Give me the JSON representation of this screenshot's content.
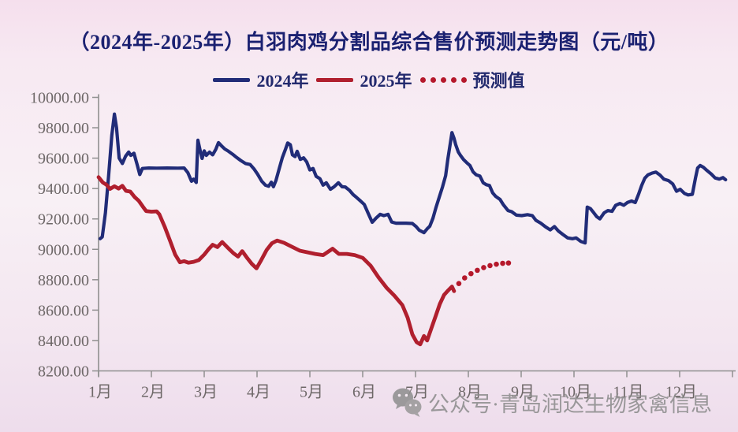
{
  "title": "（2024年-2025年）白羽肉鸡分割品综合售价预测走势图（元/吨）",
  "legend": {
    "items": [
      {
        "label": "2024年",
        "swatch": "line",
        "color": "#212c78"
      },
      {
        "label": "2025年",
        "swatch": "line",
        "color": "#b01f2e"
      },
      {
        "label": "预测值",
        "swatch": "dots",
        "color": "#b5182b"
      }
    ]
  },
  "watermark": {
    "icon": "wechat-icon",
    "text": "公众号·青岛润达生物家禽信息"
  },
  "colors": {
    "axis": "#8f8f8f",
    "tick_text": "#6e6868",
    "title_text": "#1b2171"
  },
  "chart_data": {
    "type": "line",
    "title": "（2024年-2025年）白羽肉鸡分割品综合售价预测走势图（元/吨）",
    "xlabel": "",
    "ylabel": "",
    "grid": false,
    "legend_position": "top-center",
    "x_axis": {
      "range": [
        1,
        13
      ],
      "tick_labels": [
        "1月",
        "2月",
        "3月",
        "4月",
        "5月",
        "6月",
        "7月",
        "8月",
        "9月",
        "10月",
        "11月",
        "12月"
      ]
    },
    "y_axis": {
      "min": 8200,
      "max": 10000,
      "step": 200,
      "tick_labels": [
        "8200.00",
        "8400.00",
        "8600.00",
        "8800.00",
        "9000.00",
        "9200.00",
        "9400.00",
        "9600.00",
        "9800.00",
        "10000.00"
      ]
    },
    "series": [
      {
        "name": "2024年",
        "type": "line",
        "style": "solid",
        "color": "#212c78",
        "width": 4.2,
        "points": [
          [
            1.03,
            9070
          ],
          [
            1.07,
            9082
          ],
          [
            1.13,
            9240
          ],
          [
            1.19,
            9480
          ],
          [
            1.25,
            9750
          ],
          [
            1.3,
            9890
          ],
          [
            1.34,
            9800
          ],
          [
            1.39,
            9600
          ],
          [
            1.45,
            9565
          ],
          [
            1.51,
            9612
          ],
          [
            1.57,
            9640
          ],
          [
            1.61,
            9618
          ],
          [
            1.67,
            9632
          ],
          [
            1.73,
            9558
          ],
          [
            1.78,
            9492
          ],
          [
            1.83,
            9532
          ],
          [
            1.95,
            9535
          ],
          [
            2.1,
            9534
          ],
          [
            2.3,
            9535
          ],
          [
            2.5,
            9534
          ],
          [
            2.62,
            9535
          ],
          [
            2.69,
            9505
          ],
          [
            2.76,
            9448
          ],
          [
            2.8,
            9462
          ],
          [
            2.85,
            9440
          ],
          [
            2.88,
            9718
          ],
          [
            2.93,
            9640
          ],
          [
            2.96,
            9598
          ],
          [
            3.0,
            9648
          ],
          [
            3.04,
            9618
          ],
          [
            3.1,
            9640
          ],
          [
            3.16,
            9622
          ],
          [
            3.22,
            9658
          ],
          [
            3.27,
            9702
          ],
          [
            3.33,
            9680
          ],
          [
            3.39,
            9660
          ],
          [
            3.46,
            9645
          ],
          [
            3.54,
            9625
          ],
          [
            3.61,
            9605
          ],
          [
            3.69,
            9585
          ],
          [
            3.78,
            9565
          ],
          [
            3.87,
            9558
          ],
          [
            3.94,
            9530
          ],
          [
            4.01,
            9495
          ],
          [
            4.09,
            9448
          ],
          [
            4.16,
            9422
          ],
          [
            4.22,
            9415
          ],
          [
            4.27,
            9442
          ],
          [
            4.31,
            9412
          ],
          [
            4.36,
            9455
          ],
          [
            4.42,
            9530
          ],
          [
            4.48,
            9605
          ],
          [
            4.54,
            9660
          ],
          [
            4.58,
            9700
          ],
          [
            4.63,
            9688
          ],
          [
            4.67,
            9622
          ],
          [
            4.72,
            9610
          ],
          [
            4.76,
            9645
          ],
          [
            4.82,
            9592
          ],
          [
            4.88,
            9602
          ],
          [
            4.94,
            9575
          ],
          [
            5.0,
            9522
          ],
          [
            5.06,
            9532
          ],
          [
            5.12,
            9480
          ],
          [
            5.19,
            9465
          ],
          [
            5.25,
            9422
          ],
          [
            5.31,
            9438
          ],
          [
            5.39,
            9395
          ],
          [
            5.46,
            9412
          ],
          [
            5.54,
            9438
          ],
          [
            5.61,
            9412
          ],
          [
            5.67,
            9410
          ],
          [
            5.75,
            9388
          ],
          [
            5.82,
            9360
          ],
          [
            5.88,
            9342
          ],
          [
            5.96,
            9318
          ],
          [
            6.03,
            9295
          ],
          [
            6.1,
            9240
          ],
          [
            6.18,
            9178
          ],
          [
            6.25,
            9205
          ],
          [
            6.33,
            9230
          ],
          [
            6.4,
            9222
          ],
          [
            6.48,
            9230
          ],
          [
            6.55,
            9180
          ],
          [
            6.63,
            9172
          ],
          [
            6.82,
            9172
          ],
          [
            6.94,
            9170
          ],
          [
            7.01,
            9150
          ],
          [
            7.07,
            9126
          ],
          [
            7.16,
            9110
          ],
          [
            7.22,
            9135
          ],
          [
            7.27,
            9152
          ],
          [
            7.33,
            9205
          ],
          [
            7.39,
            9278
          ],
          [
            7.45,
            9345
          ],
          [
            7.51,
            9410
          ],
          [
            7.57,
            9485
          ],
          [
            7.61,
            9590
          ],
          [
            7.66,
            9700
          ],
          [
            7.69,
            9768
          ],
          [
            7.73,
            9730
          ],
          [
            7.76,
            9690
          ],
          [
            7.81,
            9640
          ],
          [
            7.85,
            9618
          ],
          [
            7.91,
            9590
          ],
          [
            7.97,
            9570
          ],
          [
            8.03,
            9552
          ],
          [
            8.09,
            9510
          ],
          [
            8.15,
            9490
          ],
          [
            8.22,
            9482
          ],
          [
            8.28,
            9438
          ],
          [
            8.34,
            9425
          ],
          [
            8.4,
            9420
          ],
          [
            8.46,
            9372
          ],
          [
            8.52,
            9348
          ],
          [
            8.6,
            9328
          ],
          [
            8.66,
            9295
          ],
          [
            8.75,
            9255
          ],
          [
            8.82,
            9248
          ],
          [
            8.91,
            9225
          ],
          [
            9.01,
            9222
          ],
          [
            9.12,
            9228
          ],
          [
            9.21,
            9222
          ],
          [
            9.28,
            9190
          ],
          [
            9.37,
            9172
          ],
          [
            9.46,
            9148
          ],
          [
            9.55,
            9128
          ],
          [
            9.63,
            9150
          ],
          [
            9.7,
            9122
          ],
          [
            9.79,
            9098
          ],
          [
            9.88,
            9075
          ],
          [
            9.97,
            9070
          ],
          [
            10.04,
            9075
          ],
          [
            10.13,
            9052
          ],
          [
            10.21,
            9042
          ],
          [
            10.25,
            9278
          ],
          [
            10.31,
            9268
          ],
          [
            10.37,
            9242
          ],
          [
            10.43,
            9215
          ],
          [
            10.49,
            9200
          ],
          [
            10.57,
            9240
          ],
          [
            10.64,
            9255
          ],
          [
            10.72,
            9250
          ],
          [
            10.79,
            9290
          ],
          [
            10.87,
            9302
          ],
          [
            10.94,
            9290
          ],
          [
            11.01,
            9308
          ],
          [
            11.09,
            9318
          ],
          [
            11.16,
            9308
          ],
          [
            11.22,
            9360
          ],
          [
            11.28,
            9420
          ],
          [
            11.34,
            9468
          ],
          [
            11.4,
            9490
          ],
          [
            11.48,
            9502
          ],
          [
            11.55,
            9508
          ],
          [
            11.63,
            9488
          ],
          [
            11.7,
            9462
          ],
          [
            11.79,
            9452
          ],
          [
            11.87,
            9430
          ],
          [
            11.94,
            9382
          ],
          [
            12.01,
            9395
          ],
          [
            12.09,
            9368
          ],
          [
            12.16,
            9358
          ],
          [
            12.24,
            9362
          ],
          [
            12.3,
            9470
          ],
          [
            12.34,
            9535
          ],
          [
            12.39,
            9552
          ],
          [
            12.45,
            9540
          ],
          [
            12.52,
            9518
          ],
          [
            12.6,
            9495
          ],
          [
            12.67,
            9470
          ],
          [
            12.75,
            9462
          ],
          [
            12.82,
            9472
          ],
          [
            12.87,
            9458
          ]
        ]
      },
      {
        "name": "2025年",
        "type": "line",
        "style": "solid",
        "color": "#b01f2e",
        "width": 4.8,
        "points": [
          [
            1.0,
            9475
          ],
          [
            1.08,
            9440
          ],
          [
            1.15,
            9425
          ],
          [
            1.22,
            9398
          ],
          [
            1.3,
            9415
          ],
          [
            1.38,
            9400
          ],
          [
            1.45,
            9418
          ],
          [
            1.52,
            9385
          ],
          [
            1.6,
            9380
          ],
          [
            1.68,
            9345
          ],
          [
            1.76,
            9320
          ],
          [
            1.84,
            9280
          ],
          [
            1.9,
            9252
          ],
          [
            2.0,
            9248
          ],
          [
            2.1,
            9250
          ],
          [
            2.15,
            9230
          ],
          [
            2.25,
            9150
          ],
          [
            2.35,
            9060
          ],
          [
            2.45,
            8965
          ],
          [
            2.54,
            8915
          ],
          [
            2.62,
            8922
          ],
          [
            2.7,
            8912
          ],
          [
            2.8,
            8918
          ],
          [
            2.9,
            8930
          ],
          [
            3.0,
            8965
          ],
          [
            3.08,
            9000
          ],
          [
            3.16,
            9030
          ],
          [
            3.25,
            9015
          ],
          [
            3.34,
            9048
          ],
          [
            3.45,
            9010
          ],
          [
            3.55,
            8975
          ],
          [
            3.64,
            8952
          ],
          [
            3.72,
            8988
          ],
          [
            3.82,
            8940
          ],
          [
            3.9,
            8905
          ],
          [
            3.99,
            8875
          ],
          [
            4.08,
            8930
          ],
          [
            4.18,
            8995
          ],
          [
            4.28,
            9040
          ],
          [
            4.38,
            9058
          ],
          [
            4.51,
            9043
          ],
          [
            4.66,
            9017
          ],
          [
            4.81,
            8991
          ],
          [
            4.96,
            8980
          ],
          [
            5.1,
            8970
          ],
          [
            5.25,
            8962
          ],
          [
            5.43,
            9004
          ],
          [
            5.55,
            8970
          ],
          [
            5.7,
            8970
          ],
          [
            5.85,
            8962
          ],
          [
            6.0,
            8944
          ],
          [
            6.15,
            8892
          ],
          [
            6.3,
            8815
          ],
          [
            6.45,
            8748
          ],
          [
            6.6,
            8695
          ],
          [
            6.75,
            8633
          ],
          [
            6.85,
            8550
          ],
          [
            6.94,
            8440
          ],
          [
            7.02,
            8390
          ],
          [
            7.09,
            8375
          ],
          [
            7.16,
            8430
          ],
          [
            7.22,
            8400
          ],
          [
            7.3,
            8480
          ],
          [
            7.38,
            8560
          ],
          [
            7.46,
            8640
          ],
          [
            7.54,
            8700
          ],
          [
            7.62,
            8730
          ],
          [
            7.69,
            8755
          ],
          [
            7.73,
            8725
          ]
        ]
      },
      {
        "name": "预测值",
        "type": "line",
        "style": "dotted",
        "color": "#b5182b",
        "dot_radius": 3.3,
        "points": [
          [
            7.82,
            8775
          ],
          [
            7.93,
            8812
          ],
          [
            8.05,
            8840
          ],
          [
            8.17,
            8862
          ],
          [
            8.29,
            8880
          ],
          [
            8.41,
            8893
          ],
          [
            8.53,
            8902
          ],
          [
            8.65,
            8908
          ],
          [
            8.76,
            8910
          ]
        ]
      }
    ]
  }
}
